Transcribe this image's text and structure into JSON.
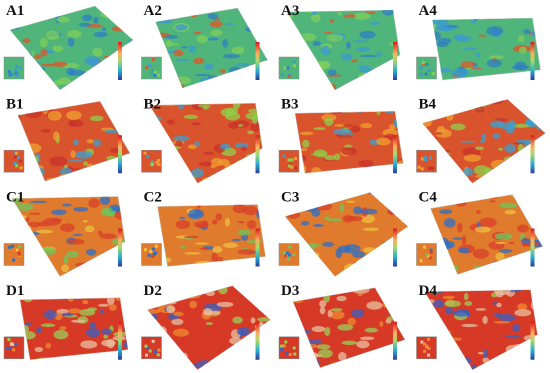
{
  "panels": [
    [
      "A1",
      "A2",
      "A3",
      "A4"
    ],
    [
      "B1",
      "B2",
      "B3",
      "B4"
    ],
    [
      "C1",
      "C2",
      "C3",
      "C4"
    ],
    [
      "D1",
      "D2",
      "D3",
      "D4"
    ]
  ]
}
